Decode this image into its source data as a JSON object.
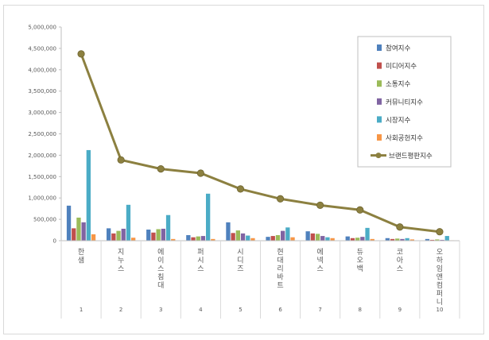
{
  "chart_data": {
    "type": "bar",
    "categories": [
      "한샘",
      "지누스",
      "에이스침대",
      "퍼시스",
      "시디즈",
      "현대리바트",
      "에넥스",
      "듀오백",
      "코아스",
      "오하임앤컴퍼니"
    ],
    "category_index": [
      "1",
      "2",
      "3",
      "4",
      "5",
      "6",
      "7",
      "8",
      "9",
      "10"
    ],
    "ylim": [
      0,
      5000000
    ],
    "yticks": [
      0,
      500000,
      1000000,
      1500000,
      2000000,
      2500000,
      3000000,
      3500000,
      4000000,
      4500000,
      5000000
    ],
    "ytick_labels": [
      "0",
      "500,000",
      "1,000,000",
      "1,500,000",
      "2,000,000",
      "2,500,000",
      "3,000,000",
      "3,500,000",
      "4,000,000",
      "4,500,000",
      "5,000,000"
    ],
    "legend_position": "top-right",
    "grid": false,
    "series": [
      {
        "name": "참여지수",
        "color": "#4f81bd",
        "values": [
          820000,
          290000,
          260000,
          130000,
          430000,
          90000,
          220000,
          100000,
          60000,
          40000
        ]
      },
      {
        "name": "미디어지수",
        "color": "#c0504d",
        "values": [
          290000,
          170000,
          190000,
          80000,
          180000,
          110000,
          170000,
          60000,
          40000,
          20000
        ]
      },
      {
        "name": "소통지수",
        "color": "#9bbb59",
        "values": [
          540000,
          230000,
          270000,
          100000,
          240000,
          130000,
          160000,
          70000,
          50000,
          30000
        ]
      },
      {
        "name": "커뮤니티지수",
        "color": "#8064a2",
        "values": [
          430000,
          280000,
          280000,
          110000,
          170000,
          230000,
          110000,
          90000,
          40000,
          20000
        ]
      },
      {
        "name": "시장지수",
        "color": "#4bacc6",
        "values": [
          2120000,
          840000,
          600000,
          1100000,
          120000,
          310000,
          80000,
          300000,
          60000,
          110000
        ]
      },
      {
        "name": "사회공헌지수",
        "color": "#f79646",
        "values": [
          150000,
          70000,
          40000,
          40000,
          60000,
          80000,
          60000,
          40000,
          30000,
          10000
        ]
      }
    ],
    "line_series": {
      "name": "브랜드평판지수",
      "color": "#8c8040",
      "values": [
        4370000,
        1890000,
        1680000,
        1580000,
        1210000,
        980000,
        830000,
        720000,
        320000,
        210000
      ]
    }
  }
}
